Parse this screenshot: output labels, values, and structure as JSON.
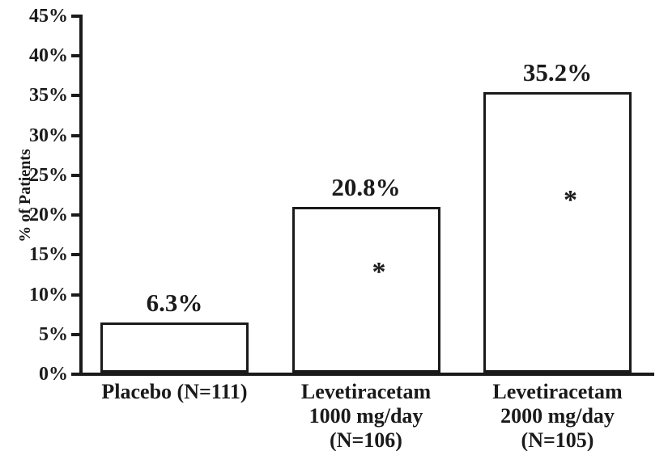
{
  "chart_data": {
    "type": "bar",
    "title": "",
    "ylabel": "% of Patients",
    "ylim": [
      0,
      45
    ],
    "ytick_step": 5,
    "ytick_labels": [
      "0%",
      "5%",
      "10%",
      "15%",
      "20%",
      "25%",
      "30%",
      "35%",
      "40%",
      "45%"
    ],
    "categories": [
      "Placebo (N=111)",
      "Levetiracetam 1000 mg/day (N=106)",
      "Levetiracetam 2000 mg/day (N=105)"
    ],
    "category_lines": [
      [
        "Placebo (N=111)"
      ],
      [
        "Levetiracetam",
        "1000 mg/day",
        "(N=106)"
      ],
      [
        "Levetiracetam",
        "2000 mg/day",
        "(N=105)"
      ]
    ],
    "values": [
      6.3,
      20.8,
      35.2
    ],
    "value_labels": [
      "6.3%",
      "20.8%",
      "35.2%"
    ],
    "significance_markers": [
      "",
      "*",
      "*"
    ],
    "grid": false,
    "colors": {
      "bar_fill": "#ffffff",
      "bar_border": "#1a1a1a",
      "axis": "#1a1a1a",
      "text": "#1a1a1a",
      "background": "#ffffff"
    }
  }
}
